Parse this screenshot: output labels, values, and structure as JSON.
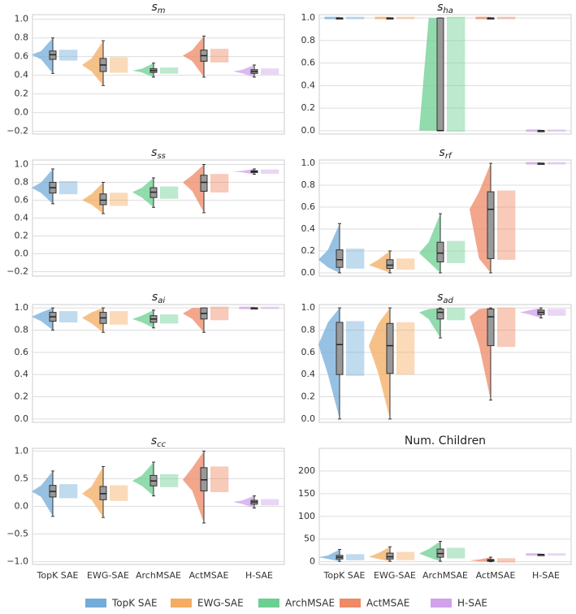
{
  "legend": [
    {
      "name": "TopK SAE",
      "color": "#74acd9"
    },
    {
      "name": "EWG-SAE",
      "color": "#f3ac62"
    },
    {
      "name": "ArchMSAE",
      "color": "#6ccf92"
    },
    {
      "name": "ActMSAE",
      "color": "#ee8a66"
    },
    {
      "name": "H-SAE",
      "color": "#d0a2ea"
    }
  ],
  "chart_data": [
    {
      "type": "box",
      "title": "s",
      "title_sub": "m",
      "ylim": [
        -0.23,
        1.05
      ],
      "yticks": [
        {
          "value": -0.2,
          "label": "−0.2"
        },
        {
          "value": 0,
          "label": "0.0"
        },
        0.2,
        0.4,
        0.6,
        0.8,
        {
          "value": 1,
          "label": "1.0"
        }
      ],
      "boxes": [
        {
          "q1": 0.57,
          "median": 0.62,
          "q3": 0.66,
          "whislo": 0.42,
          "whishi": 0.8
        },
        {
          "q1": 0.44,
          "median": 0.51,
          "q3": 0.58,
          "whislo": 0.29,
          "whishi": 0.77
        },
        {
          "q1": 0.43,
          "median": 0.45,
          "q3": 0.47,
          "whislo": 0.38,
          "whishi": 0.53
        },
        {
          "q1": 0.55,
          "median": 0.61,
          "q3": 0.67,
          "whislo": 0.38,
          "whishi": 0.82
        },
        {
          "q1": 0.42,
          "median": 0.44,
          "q3": 0.46,
          "whislo": 0.38,
          "whishi": 0.51
        }
      ]
    },
    {
      "type": "box",
      "title": "s",
      "title_sub": "ha",
      "ylim": [
        -0.03,
        1.03
      ],
      "yticks": [
        {
          "value": 0,
          "label": "0.0"
        },
        0.2,
        0.4,
        0.6,
        0.8,
        {
          "value": 1,
          "label": "1.0"
        }
      ],
      "boxes": [
        {
          "q1": 1,
          "median": 1,
          "q3": 1,
          "whislo": 1,
          "whishi": 1
        },
        {
          "q1": 1,
          "median": 1,
          "q3": 1,
          "whislo": 1,
          "whishi": 1
        },
        {
          "q1": 0,
          "median": 0,
          "q3": 1,
          "whislo": 0,
          "whishi": 1
        },
        {
          "q1": 1,
          "median": 1,
          "q3": 1,
          "whislo": 1,
          "whishi": 1
        },
        {
          "q1": 0,
          "median": 0,
          "q3": 0,
          "whislo": 0,
          "whishi": 0
        }
      ]
    },
    {
      "type": "box",
      "title": "s",
      "title_sub": "ss",
      "ylim": [
        -0.25,
        1.05
      ],
      "yticks": [
        {
          "value": -0.2,
          "label": "−0.2"
        },
        {
          "value": 0,
          "label": "0.0"
        },
        0.2,
        0.4,
        0.6,
        0.8,
        {
          "value": 1,
          "label": "1.0"
        }
      ],
      "boxes": [
        {
          "q1": 0.68,
          "median": 0.74,
          "q3": 0.8,
          "whislo": 0.56,
          "whishi": 0.95
        },
        {
          "q1": 0.55,
          "median": 0.6,
          "q3": 0.67,
          "whislo": 0.45,
          "whishi": 0.8
        },
        {
          "q1": 0.63,
          "median": 0.69,
          "q3": 0.74,
          "whislo": 0.52,
          "whishi": 0.85
        },
        {
          "q1": 0.7,
          "median": 0.8,
          "q3": 0.88,
          "whislo": 0.46,
          "whishi": 1.0
        },
        {
          "q1": 0.91,
          "median": 0.92,
          "q3": 0.93,
          "whislo": 0.89,
          "whishi": 0.95
        }
      ]
    },
    {
      "type": "box",
      "title": "s",
      "title_sub": "rf",
      "ylim": [
        -0.03,
        1.03
      ],
      "yticks": [
        {
          "value": 0,
          "label": "0.0"
        },
        0.2,
        0.4,
        0.6,
        0.8,
        {
          "value": 1,
          "label": "1.0"
        }
      ],
      "boxes": [
        {
          "q1": 0.05,
          "median": 0.12,
          "q3": 0.21,
          "whislo": 0,
          "whishi": 0.45
        },
        {
          "q1": 0.04,
          "median": 0.07,
          "q3": 0.12,
          "whislo": 0,
          "whishi": 0.2
        },
        {
          "q1": 0.1,
          "median": 0.18,
          "q3": 0.28,
          "whislo": 0,
          "whishi": 0.54
        },
        {
          "q1": 0.13,
          "median": 0.58,
          "q3": 0.74,
          "whislo": 0,
          "whishi": 1.0
        },
        {
          "q1": 1,
          "median": 1,
          "q3": 1,
          "whislo": 1,
          "whishi": 1
        }
      ]
    },
    {
      "type": "box",
      "title": "s",
      "title_sub": "ai",
      "ylim": [
        -0.03,
        1.03
      ],
      "yticks": [
        {
          "value": 0,
          "label": "0.0"
        },
        0.2,
        0.4,
        0.6,
        0.8,
        {
          "value": 1,
          "label": "1.0"
        }
      ],
      "boxes": [
        {
          "q1": 0.88,
          "median": 0.92,
          "q3": 0.96,
          "whislo": 0.8,
          "whishi": 1.0
        },
        {
          "q1": 0.86,
          "median": 0.91,
          "q3": 0.96,
          "whislo": 0.78,
          "whishi": 1.0
        },
        {
          "q1": 0.87,
          "median": 0.9,
          "q3": 0.93,
          "whislo": 0.82,
          "whishi": 0.98
        },
        {
          "q1": 0.9,
          "median": 0.95,
          "q3": 1.0,
          "whislo": 0.78,
          "whishi": 1.0
        },
        {
          "q1": 1,
          "median": 1,
          "q3": 1,
          "whislo": 1,
          "whishi": 1
        }
      ]
    },
    {
      "type": "box",
      "title": "s",
      "title_sub": "ad",
      "ylim": [
        -0.03,
        1.03
      ],
      "yticks": [
        {
          "value": 0,
          "label": "0.0"
        },
        0.2,
        0.4,
        0.6,
        0.8,
        {
          "value": 1,
          "label": "1.0"
        }
      ],
      "boxes": [
        {
          "q1": 0.4,
          "median": 0.67,
          "q3": 0.87,
          "whislo": 0,
          "whishi": 1.0
        },
        {
          "q1": 0.41,
          "median": 0.66,
          "q3": 0.86,
          "whislo": 0,
          "whishi": 1.0
        },
        {
          "q1": 0.9,
          "median": 0.96,
          "q3": 0.99,
          "whislo": 0.73,
          "whishi": 1.0
        },
        {
          "q1": 0.66,
          "median": 0.92,
          "q3": 0.99,
          "whislo": 0.17,
          "whishi": 1.0
        },
        {
          "q1": 0.94,
          "median": 0.96,
          "q3": 0.98,
          "whislo": 0.91,
          "whishi": 1.0
        }
      ]
    },
    {
      "type": "box",
      "title": "s",
      "title_sub": "cc",
      "ylim": [
        -1.05,
        1.05
      ],
      "yticks": [
        {
          "value": -1,
          "label": "−1.0"
        },
        {
          "value": -0.5,
          "label": "−0.5"
        },
        {
          "value": 0,
          "label": "0.0"
        },
        0.5,
        {
          "value": 1,
          "label": "1.0"
        }
      ],
      "categories": [
        "TopK SAE",
        "EWG-SAE",
        "ArchMSAE",
        "ActMSAE",
        "H-SAE"
      ],
      "boxes": [
        {
          "q1": 0.17,
          "median": 0.27,
          "q3": 0.38,
          "whislo": -0.18,
          "whishi": 0.64
        },
        {
          "q1": 0.12,
          "median": 0.23,
          "q3": 0.36,
          "whislo": -0.2,
          "whishi": 0.72
        },
        {
          "q1": 0.37,
          "median": 0.46,
          "q3": 0.56,
          "whislo": 0.19,
          "whishi": 0.8
        },
        {
          "q1": 0.28,
          "median": 0.48,
          "q3": 0.7,
          "whislo": -0.3,
          "whishi": 1.0
        },
        {
          "q1": 0.04,
          "median": 0.08,
          "q3": 0.11,
          "whislo": -0.03,
          "whishi": 0.19
        }
      ]
    },
    {
      "type": "box",
      "title": "Num. Children",
      "ylim": [
        -6,
        250
      ],
      "yticks": [
        0,
        50,
        100,
        150,
        200
      ],
      "categories": [
        "TopK SAE",
        "EWG-SAE",
        "ArchMSAE",
        "ActMSAE",
        "H-SAE"
      ],
      "boxes": [
        {
          "q1": 6,
          "median": 10,
          "q3": 14,
          "whislo": 1,
          "whishi": 27
        },
        {
          "q1": 6,
          "median": 11,
          "q3": 19,
          "whislo": 1,
          "whishi": 33
        },
        {
          "q1": 10,
          "median": 18,
          "q3": 28,
          "whislo": 1,
          "whishi": 45
        },
        {
          "q1": 1,
          "median": 3,
          "q3": 5,
          "whislo": 0,
          "whishi": 10
        },
        {
          "q1": 16,
          "median": 16,
          "q3": 16,
          "whislo": 16,
          "whishi": 16
        }
      ]
    }
  ]
}
